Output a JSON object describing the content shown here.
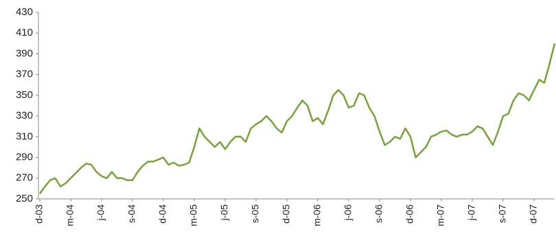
{
  "chart_data": {
    "type": "line",
    "x": [
      0,
      0.5,
      1,
      1.5,
      2,
      2.5,
      3,
      3.5,
      4,
      4.5,
      5,
      5.5,
      6,
      6.5,
      7,
      7.5,
      8,
      8.5,
      9,
      9.5,
      10,
      10.5,
      11,
      11.5,
      12,
      12.5,
      13,
      13.5,
      14,
      14.5,
      15,
      15.5,
      16,
      16.5,
      17,
      17.5,
      18,
      18.5,
      19,
      19.5,
      20,
      20.5,
      21,
      21.5,
      22,
      22.5,
      23,
      23.5,
      24,
      24.5,
      25,
      25.5,
      26,
      26.5,
      27,
      27.5,
      28,
      28.5,
      29,
      29.5,
      30,
      30.5,
      31,
      31.5,
      32,
      32.5,
      33,
      33.5,
      34,
      34.5,
      35,
      35.5,
      36,
      36.5,
      37,
      37.5,
      38,
      38.5,
      39,
      39.5,
      40,
      40.5,
      41,
      41.5,
      42,
      42.5,
      43,
      43.5,
      44,
      44.5,
      45,
      45.5,
      46,
      46.5,
      47,
      47.5,
      48,
      48.5,
      49,
      49.5,
      50
    ],
    "values": [
      255,
      262,
      268,
      270,
      262,
      265,
      270,
      275,
      280,
      284,
      283,
      276,
      272,
      270,
      276,
      270,
      270,
      268,
      268,
      276,
      282,
      286,
      286,
      288,
      290,
      283,
      285,
      282,
      283,
      285,
      300,
      318,
      310,
      305,
      300,
      305,
      298,
      305,
      310,
      310,
      305,
      318,
      322,
      325,
      330,
      325,
      318,
      314,
      325,
      330,
      338,
      345,
      340,
      325,
      328,
      322,
      335,
      350,
      355,
      350,
      338,
      340,
      352,
      350,
      338,
      330,
      315,
      302,
      305,
      310,
      308,
      318,
      310,
      290,
      295,
      300,
      310,
      312,
      315,
      316,
      312,
      310,
      312,
      312,
      315,
      320,
      318,
      310,
      302,
      315,
      330,
      332,
      345,
      352,
      350,
      345,
      355,
      365,
      362,
      380,
      400
    ],
    "color": "#77a13c",
    "xlim": [
      0,
      50
    ],
    "xticks": [
      {
        "value": 0,
        "label": "d-03"
      },
      {
        "value": 3,
        "label": "m-04"
      },
      {
        "value": 6,
        "label": "j-04"
      },
      {
        "value": 9,
        "label": "s-04"
      },
      {
        "value": 12,
        "label": "d-04"
      },
      {
        "value": 15,
        "label": "m-05"
      },
      {
        "value": 18,
        "label": "j-05"
      },
      {
        "value": 21,
        "label": "s-05"
      },
      {
        "value": 24,
        "label": "d-05"
      },
      {
        "value": 27,
        "label": "m-06"
      },
      {
        "value": 30,
        "label": "j-06"
      },
      {
        "value": 33,
        "label": "s-06"
      },
      {
        "value": 36,
        "label": "d-06"
      },
      {
        "value": 39,
        "label": "m-07"
      },
      {
        "value": 42,
        "label": "j-07"
      },
      {
        "value": 45,
        "label": "s-07"
      },
      {
        "value": 48,
        "label": "d-07"
      }
    ],
    "ylim": [
      250,
      430
    ],
    "yticks": [
      250,
      270,
      290,
      310,
      330,
      350,
      370,
      390,
      410,
      430
    ]
  }
}
